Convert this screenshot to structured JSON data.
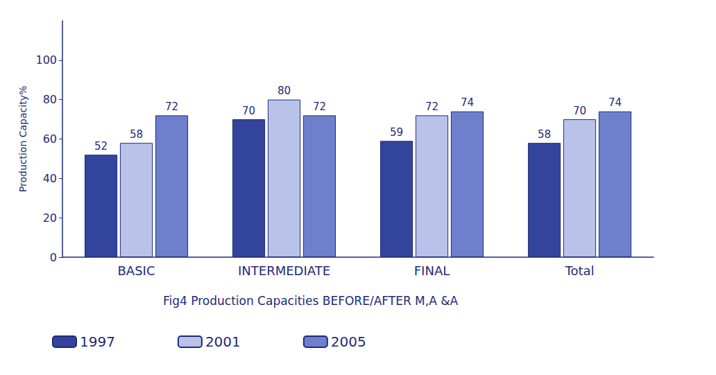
{
  "chart_data": {
    "type": "bar",
    "title": "Fig4 Production Capacities BEFORE/AFTER M,A &A",
    "y_label": "Production Capacity%",
    "categories": [
      "BASIC",
      "INTERMEDIATE",
      "FINAL",
      "Total"
    ],
    "series": [
      {
        "name": "1997",
        "color": "#33449c",
        "values": [
          52,
          70,
          59,
          58
        ]
      },
      {
        "name": "2001",
        "color": "#b9c3ea",
        "values": [
          58,
          80,
          72,
          70
        ]
      },
      {
        "name": "2005",
        "color": "#6e7fcc",
        "values": [
          72,
          72,
          74,
          74
        ]
      }
    ],
    "ylim": [
      0,
      120
    ],
    "yticks": [
      0,
      20,
      40,
      60,
      80,
      100
    ],
    "grid": false,
    "legend": "bottom-left",
    "data_labels": true
  }
}
